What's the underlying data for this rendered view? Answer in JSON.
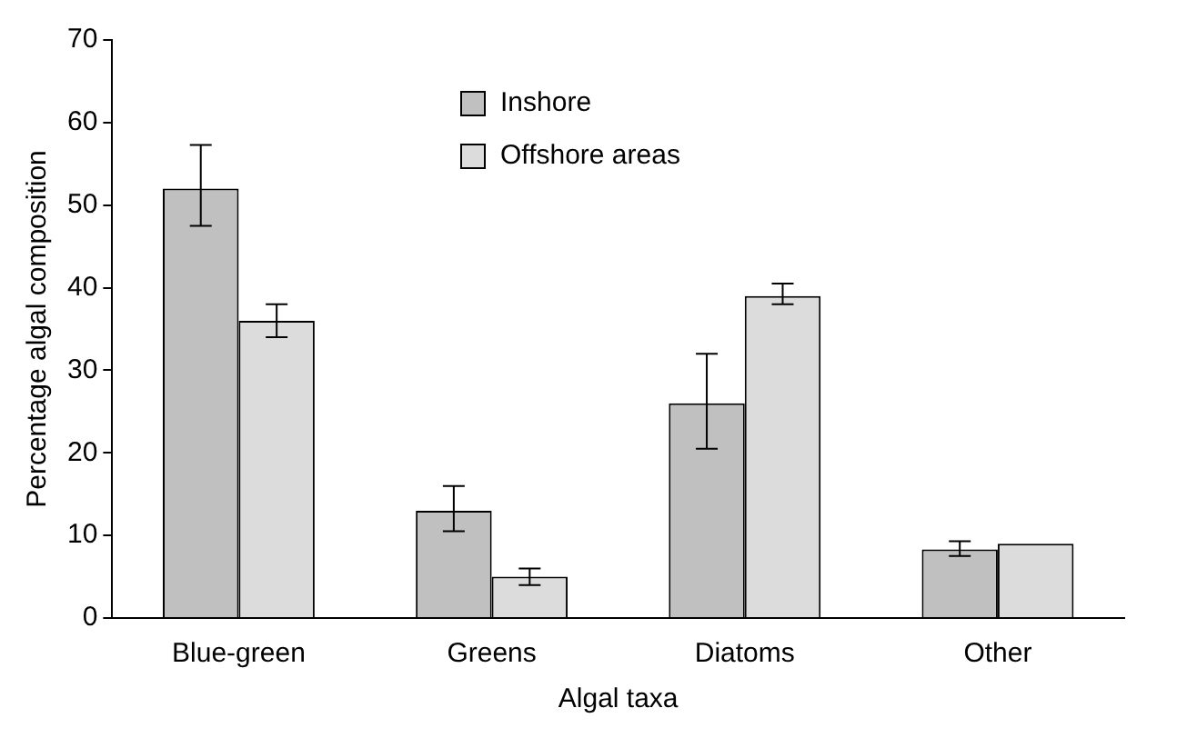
{
  "chart_data": {
    "type": "bar",
    "xlabel": "Algal taxa",
    "ylabel": "Percentage algal composition",
    "categories": [
      "Blue-green",
      "Greens",
      "Diatoms",
      "Other"
    ],
    "series": [
      {
        "name": "Inshore",
        "color": "#c0c0c0",
        "values": [
          52,
          13,
          26,
          8.3
        ],
        "errors": [
          [
            47.5,
            57.3
          ],
          [
            10.5,
            16
          ],
          [
            20.5,
            32
          ],
          [
            7.5,
            9.3
          ]
        ]
      },
      {
        "name": "Offshore areas",
        "color": "#dcdcdc",
        "values": [
          36,
          5,
          39,
          9
        ],
        "errors": [
          [
            34,
            38
          ],
          [
            4,
            6
          ],
          [
            38,
            40.5
          ],
          null
        ]
      }
    ],
    "ylim": [
      0,
      70
    ],
    "yticks": [
      0,
      10,
      20,
      30,
      40,
      50,
      60,
      70
    ],
    "grid": false,
    "legend": "top"
  }
}
